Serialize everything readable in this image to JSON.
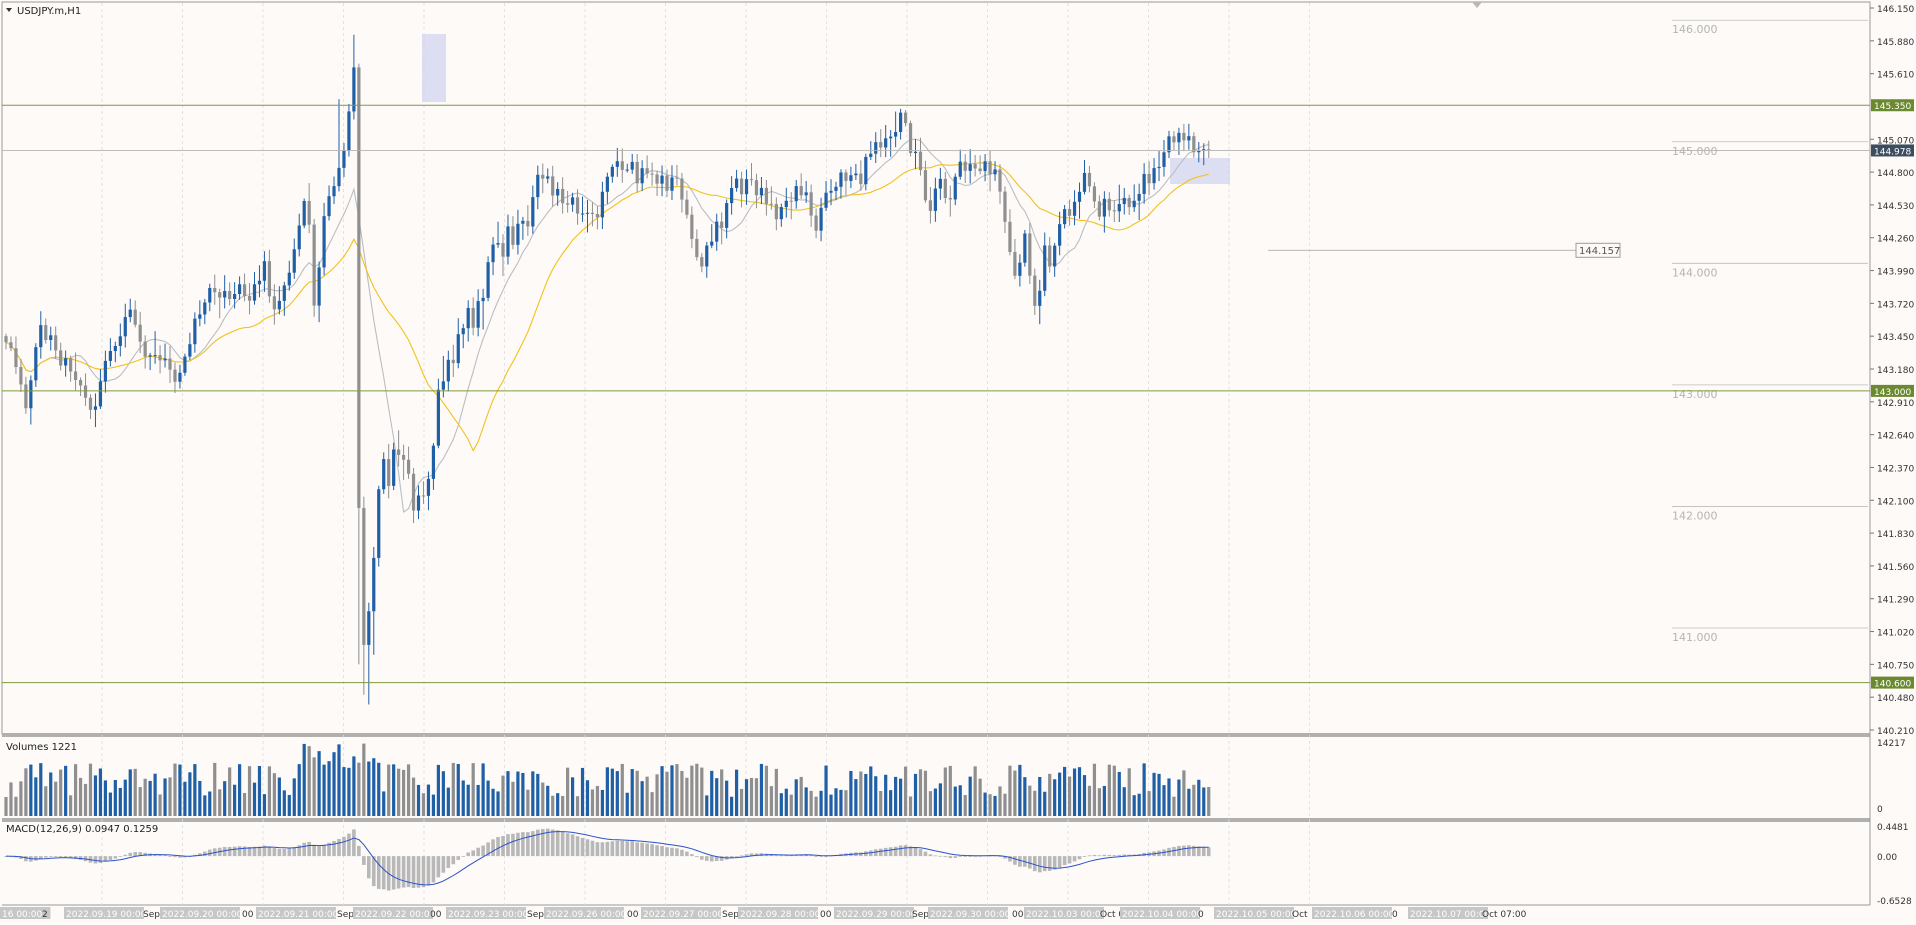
{
  "window": {
    "title": "USDJPY.m,H1"
  },
  "colors": {
    "background": "#fdfaf8",
    "bull": "#1f5fa6",
    "bear": "#8f8f8f",
    "ma_fast": "#b9bec4",
    "ma_slow": "#f2c21b",
    "level_line": "#7f9a3e",
    "level_tag": "#6b8a2f",
    "price_tag": "#3b4d5f",
    "grid": "#dcdcdc",
    "macd_signal": "#2d52c8",
    "macd_hist": "#b8b8b8",
    "highlight": "#c9ccf0"
  },
  "chart_data": {
    "type": "candlestick",
    "symbol": "USDJPY.m",
    "timeframe": "H1",
    "y_axis": {
      "range": [
        140.21,
        146.15
      ],
      "ticks": [
        "146.150",
        "145.880",
        "145.610",
        "145.350",
        "145.070",
        "144.978",
        "144.800",
        "144.530",
        "144.260",
        "143.990",
        "143.720",
        "143.450",
        "143.180",
        "143.000",
        "142.910",
        "142.640",
        "142.370",
        "142.100",
        "141.830",
        "141.560",
        "141.290",
        "141.020",
        "140.750",
        "140.600",
        "140.480",
        "140.210"
      ]
    },
    "horizontal_levels": [
      {
        "price": 145.35,
        "label": "145.350"
      },
      {
        "price": 143.0,
        "label": "143.000"
      },
      {
        "price": 140.6,
        "label": "140.600"
      }
    ],
    "current_price": {
      "price": 144.978,
      "label": "144.978"
    },
    "round_levels": [
      {
        "price": 146.0,
        "label": "146.000"
      },
      {
        "price": 145.0,
        "label": "145.000"
      },
      {
        "price": 144.0,
        "label": "144.000"
      },
      {
        "price": 143.0,
        "label": "143.000"
      },
      {
        "price": 142.0,
        "label": "142.000"
      },
      {
        "price": 141.0,
        "label": "141.000"
      }
    ],
    "annotation": {
      "price": 144.157,
      "label": "144.157"
    },
    "x_axis_labels": [
      "16 00:00",
      "2",
      "2022.09.19 00:00",
      "Sep",
      "2022.09.20 00:00",
      "00",
      "2022.09.21 00:00",
      "Sep",
      "2022.09.22 00:00",
      "00",
      "2022.09.23 00:00",
      "Sep",
      "2022.09.26 00:00",
      "00",
      "2022.09.27 00:00",
      "Sep",
      "2022.09.28 00:00",
      "00",
      "2022.09.29 00:00",
      "Sep",
      "2022.09.30 00:00",
      "00",
      "2022.10.03 00:00",
      "Oct 0",
      "2022.10.04 00:00",
      "0",
      "2022.10.05 00:00",
      "Oct",
      "2022.10.06 00:00",
      "0",
      "2022.10.07 00:00",
      "Oct 07:00"
    ],
    "path_points": [
      [
        0,
        143.45
      ],
      [
        10,
        143.35
      ],
      [
        18,
        143.1
      ],
      [
        22,
        143.0
      ],
      [
        26,
        142.8
      ],
      [
        30,
        143.1
      ],
      [
        34,
        143.3
      ],
      [
        38,
        143.6
      ],
      [
        44,
        143.4
      ],
      [
        48,
        143.5
      ],
      [
        54,
        143.35
      ],
      [
        60,
        143.2
      ],
      [
        64,
        143.3
      ],
      [
        68,
        143.1
      ],
      [
        72,
        143.25
      ],
      [
        76,
        143.0
      ],
      [
        80,
        143.05
      ],
      [
        84,
        142.95
      ],
      [
        88,
        142.9
      ],
      [
        92,
        142.75
      ],
      [
        96,
        142.95
      ],
      [
        100,
        143.1
      ],
      [
        106,
        143.3
      ],
      [
        112,
        143.35
      ],
      [
        118,
        143.4
      ],
      [
        122,
        143.55
      ],
      [
        128,
        143.7
      ],
      [
        132,
        143.6
      ],
      [
        138,
        143.45
      ],
      [
        142,
        143.3
      ],
      [
        148,
        143.25
      ],
      [
        152,
        143.4
      ],
      [
        156,
        143.2
      ],
      [
        162,
        143.3
      ],
      [
        168,
        143.2
      ],
      [
        172,
        143.1
      ],
      [
        176,
        143.05
      ],
      [
        182,
        143.25
      ],
      [
        188,
        143.35
      ],
      [
        192,
        143.5
      ],
      [
        196,
        143.7
      ],
      [
        200,
        143.6
      ],
      [
        206,
        143.8
      ],
      [
        212,
        143.9
      ],
      [
        216,
        143.7
      ],
      [
        222,
        143.85
      ],
      [
        228,
        143.75
      ],
      [
        234,
        143.8
      ],
      [
        240,
        143.9
      ],
      [
        246,
        143.7
      ],
      [
        252,
        143.8
      ],
      [
        256,
        144.0
      ],
      [
        260,
        143.85
      ],
      [
        264,
        144.1
      ],
      [
        268,
        143.8
      ],
      [
        272,
        143.6
      ],
      [
        276,
        143.8
      ],
      [
        280,
        143.7
      ],
      [
        284,
        143.9
      ],
      [
        290,
        144.0
      ],
      [
        294,
        144.2
      ],
      [
        298,
        144.35
      ],
      [
        302,
        144.5
      ],
      [
        306,
        144.7
      ],
      [
        310,
        144.1
      ],
      [
        314,
        143.6
      ],
      [
        318,
        144.0
      ],
      [
        322,
        144.4
      ],
      [
        328,
        144.6
      ],
      [
        334,
        144.7
      ],
      [
        340,
        144.9
      ],
      [
        344,
        145.0
      ],
      [
        348,
        145.3
      ],
      [
        350,
        145.8
      ],
      [
        352,
        145.9
      ],
      [
        354,
        145.4
      ],
      [
        356,
        143.0
      ],
      [
        358,
        142.0
      ],
      [
        360,
        141.5
      ],
      [
        362,
        141.0
      ],
      [
        364,
        140.8
      ],
      [
        366,
        141.0
      ],
      [
        368,
        141.2
      ],
      [
        370,
        140.75
      ],
      [
        372,
        141.5
      ],
      [
        376,
        142.1
      ],
      [
        380,
        142.3
      ],
      [
        384,
        142.5
      ],
      [
        388,
        142.2
      ],
      [
        392,
        142.5
      ],
      [
        396,
        142.6
      ],
      [
        400,
        142.3
      ],
      [
        404,
        142.5
      ],
      [
        408,
        142.3
      ],
      [
        412,
        142.0
      ],
      [
        416,
        142.1
      ],
      [
        420,
        142.2
      ],
      [
        424,
        142.1
      ],
      [
        428,
        142.3
      ],
      [
        432,
        142.5
      ],
      [
        436,
        142.9
      ],
      [
        440,
        143.2
      ],
      [
        444,
        143.0
      ],
      [
        448,
        143.3
      ],
      [
        452,
        143.2
      ],
      [
        456,
        143.5
      ],
      [
        460,
        143.4
      ],
      [
        464,
        143.6
      ],
      [
        468,
        143.7
      ],
      [
        472,
        143.5
      ],
      [
        476,
        143.8
      ],
      [
        480,
        143.6
      ],
      [
        484,
        143.9
      ],
      [
        488,
        144.1
      ],
      [
        492,
        144.2
      ],
      [
        496,
        144.3
      ],
      [
        500,
        144.0
      ],
      [
        504,
        144.2
      ],
      [
        508,
        144.4
      ],
      [
        512,
        144.2
      ],
      [
        516,
        144.4
      ],
      [
        520,
        144.3
      ],
      [
        524,
        144.5
      ],
      [
        528,
        144.3
      ],
      [
        532,
        144.6
      ],
      [
        536,
        144.8
      ],
      [
        540,
        144.7
      ],
      [
        544,
        144.8
      ],
      [
        548,
        144.75
      ],
      [
        552,
        144.6
      ],
      [
        556,
        144.7
      ],
      [
        560,
        144.5
      ],
      [
        564,
        144.6
      ],
      [
        568,
        144.5
      ],
      [
        572,
        144.6
      ],
      [
        576,
        144.45
      ],
      [
        580,
        144.5
      ],
      [
        584,
        144.4
      ],
      [
        588,
        144.5
      ],
      [
        592,
        144.45
      ],
      [
        596,
        144.4
      ],
      [
        600,
        144.6
      ],
      [
        604,
        144.7
      ],
      [
        608,
        144.8
      ],
      [
        612,
        144.85
      ],
      [
        616,
        144.9
      ],
      [
        620,
        144.8
      ],
      [
        624,
        144.85
      ],
      [
        628,
        144.8
      ],
      [
        632,
        144.9
      ],
      [
        636,
        144.7
      ],
      [
        640,
        144.8
      ],
      [
        644,
        144.9
      ],
      [
        648,
        144.7
      ],
      [
        652,
        144.8
      ],
      [
        656,
        144.7
      ],
      [
        660,
        144.8
      ],
      [
        664,
        144.7
      ],
      [
        668,
        144.6
      ],
      [
        672,
        144.8
      ],
      [
        676,
        144.75
      ],
      [
        680,
        144.6
      ],
      [
        684,
        144.5
      ],
      [
        688,
        144.4
      ],
      [
        692,
        144.2
      ],
      [
        696,
        144.1
      ],
      [
        700,
        144.0
      ],
      [
        704,
        144.1
      ],
      [
        708,
        144.3
      ],
      [
        712,
        144.2
      ],
      [
        716,
        144.4
      ],
      [
        720,
        144.3
      ],
      [
        724,
        144.5
      ],
      [
        728,
        144.6
      ],
      [
        732,
        144.7
      ],
      [
        736,
        144.75
      ],
      [
        740,
        144.6
      ],
      [
        744,
        144.7
      ],
      [
        748,
        144.8
      ],
      [
        752,
        144.7
      ],
      [
        756,
        144.6
      ],
      [
        760,
        144.7
      ],
      [
        764,
        144.5
      ],
      [
        768,
        144.6
      ],
      [
        772,
        144.5
      ],
      [
        776,
        144.4
      ],
      [
        780,
        144.5
      ],
      [
        784,
        144.6
      ],
      [
        788,
        144.5
      ],
      [
        792,
        144.6
      ],
      [
        796,
        144.7
      ],
      [
        800,
        144.6
      ],
      [
        804,
        144.7
      ],
      [
        808,
        144.5
      ],
      [
        812,
        144.4
      ],
      [
        816,
        144.3
      ],
      [
        820,
        144.5
      ],
      [
        824,
        144.6
      ],
      [
        828,
        144.7
      ],
      [
        832,
        144.6
      ],
      [
        836,
        144.7
      ],
      [
        840,
        144.8
      ],
      [
        844,
        144.7
      ],
      [
        848,
        144.8
      ],
      [
        852,
        144.75
      ],
      [
        856,
        144.8
      ],
      [
        860,
        144.7
      ],
      [
        864,
        144.9
      ],
      [
        868,
        145.0
      ],
      [
        872,
        144.9
      ],
      [
        876,
        145.1
      ],
      [
        880,
        145.0
      ],
      [
        884,
        145.1
      ],
      [
        888,
        145.0
      ],
      [
        892,
        145.2
      ],
      [
        896,
        145.1
      ],
      [
        900,
        145.3
      ],
      [
        904,
        145.25
      ],
      [
        908,
        145.0
      ],
      [
        912,
        144.9
      ],
      [
        916,
        145.0
      ],
      [
        920,
        144.8
      ],
      [
        924,
        144.6
      ],
      [
        928,
        144.4
      ],
      [
        932,
        144.6
      ],
      [
        936,
        144.7
      ],
      [
        940,
        144.75
      ],
      [
        944,
        144.6
      ],
      [
        948,
        144.5
      ],
      [
        952,
        144.7
      ],
      [
        956,
        144.8
      ],
      [
        960,
        144.9
      ],
      [
        964,
        144.8
      ],
      [
        968,
        144.9
      ],
      [
        972,
        144.8
      ],
      [
        976,
        144.85
      ],
      [
        980,
        144.8
      ],
      [
        984,
        144.9
      ],
      [
        988,
        144.75
      ],
      [
        992,
        144.85
      ],
      [
        996,
        144.8
      ],
      [
        1000,
        144.6
      ],
      [
        1004,
        144.4
      ],
      [
        1008,
        144.2
      ],
      [
        1012,
        144.0
      ],
      [
        1016,
        143.9
      ],
      [
        1020,
        144.1
      ],
      [
        1024,
        144.3
      ],
      [
        1028,
        144.0
      ],
      [
        1032,
        143.8
      ],
      [
        1036,
        143.6
      ],
      [
        1040,
        143.9
      ],
      [
        1044,
        144.2
      ],
      [
        1048,
        144.0
      ],
      [
        1052,
        144.1
      ],
      [
        1056,
        144.3
      ],
      [
        1060,
        144.4
      ],
      [
        1064,
        144.5
      ],
      [
        1068,
        144.4
      ],
      [
        1072,
        144.6
      ],
      [
        1076,
        144.5
      ],
      [
        1080,
        144.7
      ],
      [
        1084,
        144.8
      ],
      [
        1088,
        144.7
      ],
      [
        1092,
        144.6
      ],
      [
        1096,
        144.5
      ],
      [
        1100,
        144.4
      ],
      [
        1104,
        144.6
      ],
      [
        1108,
        144.5
      ],
      [
        1112,
        144.4
      ],
      [
        1116,
        144.6
      ],
      [
        1120,
        144.5
      ],
      [
        1124,
        144.6
      ],
      [
        1128,
        144.5
      ],
      [
        1132,
        144.6
      ],
      [
        1136,
        144.5
      ],
      [
        1140,
        144.7
      ],
      [
        1144,
        144.8
      ],
      [
        1148,
        144.7
      ],
      [
        1152,
        144.8
      ],
      [
        1156,
        144.9
      ],
      [
        1160,
        144.8
      ],
      [
        1164,
        145.0
      ],
      [
        1168,
        145.1
      ],
      [
        1172,
        145.0
      ],
      [
        1176,
        145.15
      ],
      [
        1180,
        145.1
      ],
      [
        1184,
        145.05
      ],
      [
        1188,
        145.1
      ],
      [
        1192,
        144.95
      ],
      [
        1196,
        145.0
      ],
      [
        1200,
        144.95
      ],
      [
        1204,
        145.0
      ],
      [
        1208,
        144.978
      ]
    ],
    "volumes": {
      "label": "Volumes 1221",
      "range": [
        0,
        14217
      ],
      "ticks": [
        "14217",
        "0"
      ]
    },
    "macd": {
      "label": "MACD(12,26,9) 0.0947 0.1259",
      "params": [
        12,
        26,
        9
      ],
      "main": 0.0947,
      "signal": 0.1259,
      "range": [
        -0.6528,
        0.4481
      ],
      "ticks": [
        "0.4481",
        "0.00",
        "-0.6528"
      ]
    }
  }
}
